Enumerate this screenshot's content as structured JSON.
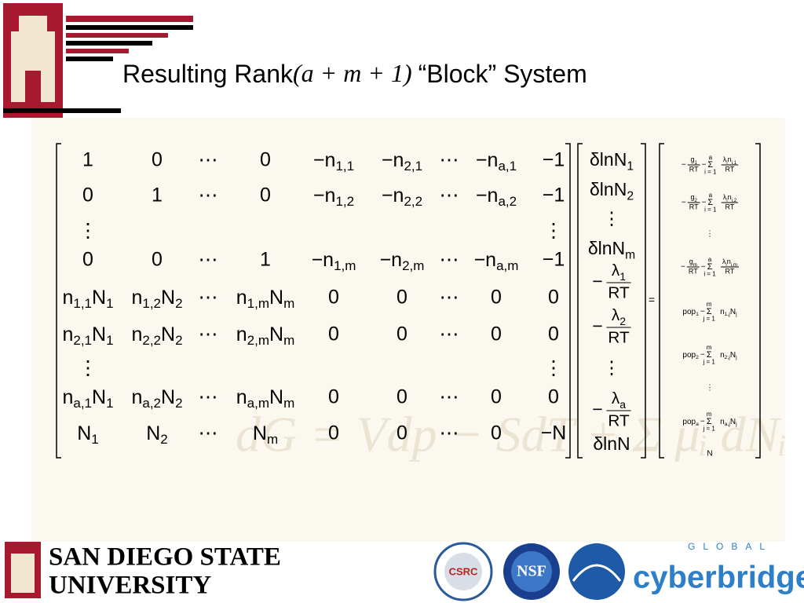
{
  "header": {
    "title": {
      "prefix": "Resulting Rank",
      "math": "(a + m + 1)",
      "suffix": "“Block” System"
    }
  },
  "background": {
    "equation": "dG = Vdp − SdT + Σ μᵢ dNᵢ"
  },
  "matrix": {
    "rows": [
      [
        "1",
        "0",
        "⋯",
        "0",
        [
          [
            "−n",
            "1,1"
          ]
        ],
        [
          [
            "−n",
            "2,1"
          ]
        ],
        "⋯",
        [
          [
            "−n",
            "a,1"
          ]
        ],
        "−1"
      ],
      [
        "0",
        "1",
        "⋯",
        "0",
        [
          [
            "−n",
            "1,2"
          ]
        ],
        [
          [
            "−n",
            "2,2"
          ]
        ],
        "⋯",
        [
          [
            "−n",
            "a,2"
          ]
        ],
        "−1"
      ],
      [
        "⋮",
        null,
        null,
        null,
        null,
        null,
        null,
        null,
        "⋮"
      ],
      [
        "0",
        "0",
        "⋯",
        "1",
        [
          [
            "−n",
            "1,m"
          ]
        ],
        [
          [
            "−n",
            "2,m"
          ]
        ],
        "⋯",
        [
          [
            "−n",
            "a,m"
          ]
        ],
        "−1"
      ],
      [
        [
          [
            "n",
            "1,1"
          ],
          [
            "N",
            "1"
          ]
        ],
        [
          [
            "n",
            "1,2"
          ],
          [
            "N",
            "2"
          ]
        ],
        "⋯",
        [
          [
            "n",
            "1,m"
          ],
          [
            "N",
            "m"
          ]
        ],
        "0",
        "0",
        "⋯",
        "0",
        "0"
      ],
      [
        [
          [
            "n",
            "2,1"
          ],
          [
            "N",
            "1"
          ]
        ],
        [
          [
            "n",
            "2,2"
          ],
          [
            "N",
            "2"
          ]
        ],
        "⋯",
        [
          [
            "n",
            "2,m"
          ],
          [
            "N",
            "m"
          ]
        ],
        "0",
        "0",
        "⋯",
        "0",
        "0"
      ],
      [
        "⋮",
        null,
        null,
        null,
        null,
        null,
        null,
        null,
        "⋮"
      ],
      [
        [
          [
            "n",
            "a,1"
          ],
          [
            "N",
            "1"
          ]
        ],
        [
          [
            "n",
            "a,2"
          ],
          [
            "N",
            "2"
          ]
        ],
        "⋯",
        [
          [
            "n",
            "a,m"
          ],
          [
            "N",
            "m"
          ]
        ],
        "0",
        "0",
        "⋯",
        "0",
        "0"
      ],
      [
        [
          [
            "N",
            "1"
          ]
        ],
        [
          [
            "N",
            "2"
          ]
        ],
        "⋯",
        [
          [
            "N",
            "m"
          ]
        ],
        "0",
        "0",
        "⋯",
        "0",
        "−N"
      ]
    ]
  },
  "unknowns": [
    [
      [
        "δlnN",
        "1"
      ]
    ],
    [
      [
        "δlnN",
        "2"
      ]
    ],
    "⋮",
    [
      [
        "δlnN",
        "m"
      ]
    ],
    [
      "−",
      {
        "n": [
          [
            "λ",
            "1"
          ]
        ],
        "d": "RT"
      }
    ],
    [
      "−",
      {
        "n": [
          [
            "λ",
            "2"
          ]
        ],
        "d": "RT"
      }
    ],
    "⋮",
    [
      "−",
      {
        "n": [
          [
            "λ",
            "a"
          ]
        ],
        "d": "RT"
      }
    ],
    "δlnN"
  ],
  "equals": "=",
  "rhs": [
    [
      "−",
      {
        "n": [
          [
            "g",
            "1"
          ]
        ],
        "d": "RT"
      },
      "−",
      {
        "sum": "Σ",
        "top": "a",
        "bot": "i = 1"
      },
      {
        "n": [
          [
            "λ",
            "i"
          ],
          [
            "n",
            "i,1"
          ]
        ],
        "d": "RT"
      }
    ],
    [
      "−",
      {
        "n": [
          [
            "g",
            "2"
          ]
        ],
        "d": "RT"
      },
      "−",
      {
        "sum": "Σ",
        "top": "a",
        "bot": "i = 1"
      },
      {
        "n": [
          [
            "λ",
            "i"
          ],
          [
            "n",
            "i,2"
          ]
        ],
        "d": "RT"
      }
    ],
    "⋮",
    [
      "−",
      {
        "n": [
          [
            "g",
            "m"
          ]
        ],
        "d": "RT"
      },
      "−",
      {
        "sum": "Σ",
        "top": "a",
        "bot": "i = 1"
      },
      {
        "n": [
          [
            "λ",
            "i"
          ],
          [
            "n",
            "i,m"
          ]
        ],
        "d": "RT"
      }
    ],
    [
      [
        [
          "pop",
          "1"
        ]
      ],
      "−",
      {
        "sum": "Σ",
        "top": "m",
        "bot": "j = 1"
      },
      [
        [
          "n",
          "1,j"
        ],
        [
          "N",
          "j"
        ]
      ]
    ],
    [
      [
        [
          "pop",
          "2"
        ]
      ],
      "−",
      {
        "sum": "Σ",
        "top": "m",
        "bot": "j = 1"
      },
      [
        [
          "n",
          "2,j"
        ],
        [
          "N",
          "j"
        ]
      ]
    ],
    "⋮",
    [
      [
        [
          "pop",
          "a"
        ]
      ],
      "−",
      {
        "sum": "Σ",
        "top": "m",
        "bot": "j = 1"
      },
      [
        [
          "n",
          "a,j"
        ],
        [
          "N",
          "j"
        ]
      ]
    ],
    "N"
  ],
  "footer": {
    "university_line1": "SAN DIEGO STATE",
    "university_line2": "UNIVERSITY",
    "csrc": "CSRC",
    "nsf": "NSF",
    "global": "GLOBAL",
    "cyberbridges": "cyberbridges"
  }
}
